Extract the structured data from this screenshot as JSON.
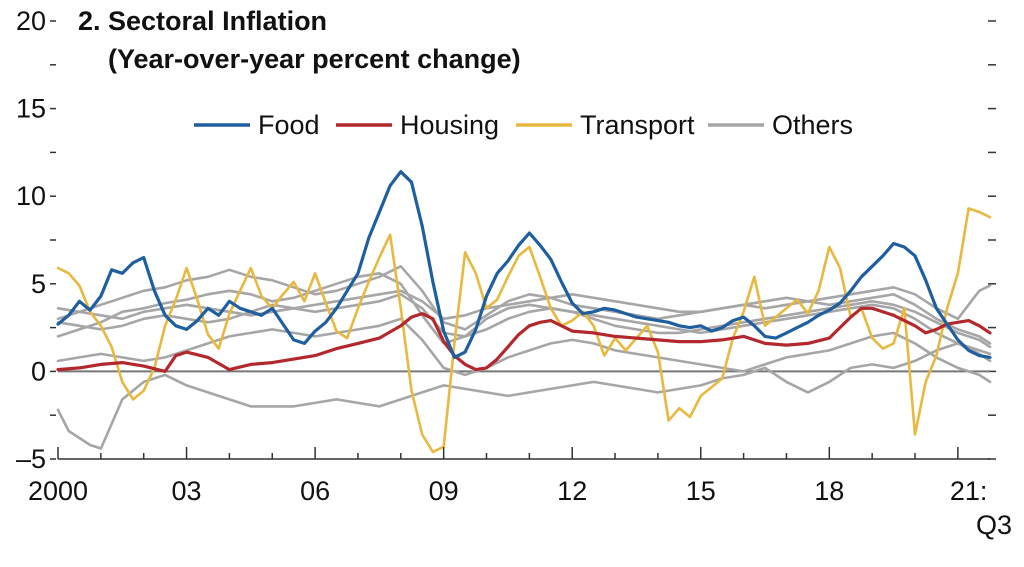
{
  "chart_data": {
    "type": "line",
    "title": "2. Sectoral Inflation",
    "subtitle": "(Year-over-year percent change)",
    "xlabel": "",
    "ylabel": "",
    "xlim": [
      2000,
      2021.75
    ],
    "ylim": [
      -5,
      20
    ],
    "y_ticks": [
      {
        "value": 20,
        "label": "20"
      },
      {
        "value": 15,
        "label": "15"
      },
      {
        "value": 10,
        "label": "10"
      },
      {
        "value": 5,
        "label": "5"
      },
      {
        "value": 0,
        "label": "0"
      },
      {
        "value": -5,
        "label": "–5"
      }
    ],
    "x_ticks": [
      {
        "value": 2000,
        "label": "2000"
      },
      {
        "value": 2003,
        "label": "03"
      },
      {
        "value": 2006,
        "label": "06"
      },
      {
        "value": 2009,
        "label": "09"
      },
      {
        "value": 2012,
        "label": "12"
      },
      {
        "value": 2015,
        "label": "15"
      },
      {
        "value": 2018,
        "label": "18"
      },
      {
        "value": 2021,
        "label": "21:"
      }
    ],
    "x_last_sublabel": "Q3",
    "legend_position": "top-center",
    "series": [
      {
        "name": "Food",
        "color": "#1f5f9f",
        "width": 3.2,
        "legend": true,
        "x": [
          2000,
          2000.25,
          2000.5,
          2000.75,
          2001,
          2001.25,
          2001.5,
          2001.75,
          2002,
          2002.25,
          2002.5,
          2002.75,
          2003,
          2003.25,
          2003.5,
          2003.75,
          2004,
          2004.25,
          2004.5,
          2004.75,
          2005,
          2005.25,
          2005.5,
          2005.75,
          2006,
          2006.25,
          2006.5,
          2006.75,
          2007,
          2007.25,
          2007.5,
          2007.75,
          2008,
          2008.25,
          2008.5,
          2008.75,
          2009,
          2009.25,
          2009.5,
          2009.75,
          2010,
          2010.25,
          2010.5,
          2010.75,
          2011,
          2011.25,
          2011.5,
          2011.75,
          2012,
          2012.25,
          2012.5,
          2012.75,
          2013,
          2013.25,
          2013.5,
          2013.75,
          2014,
          2014.25,
          2014.5,
          2014.75,
          2015,
          2015.25,
          2015.5,
          2015.75,
          2016,
          2016.25,
          2016.5,
          2016.75,
          2017,
          2017.25,
          2017.5,
          2017.75,
          2018,
          2018.25,
          2018.5,
          2018.75,
          2019,
          2019.25,
          2019.5,
          2019.75,
          2020,
          2020.25,
          2020.5,
          2020.75,
          2021,
          2021.25,
          2021.5,
          2021.75
        ],
        "values": [
          2.7,
          3.2,
          4.0,
          3.5,
          4.3,
          5.8,
          5.6,
          6.2,
          6.5,
          4.6,
          3.2,
          2.6,
          2.4,
          2.9,
          3.6,
          3.2,
          4.0,
          3.6,
          3.4,
          3.2,
          3.6,
          2.7,
          1.8,
          1.6,
          2.3,
          2.8,
          3.6,
          4.6,
          5.6,
          7.6,
          9.1,
          10.6,
          11.4,
          10.8,
          8.3,
          5.1,
          2.3,
          0.8,
          1.1,
          2.4,
          4.3,
          5.6,
          6.3,
          7.2,
          7.9,
          7.2,
          6.4,
          5.1,
          3.9,
          3.3,
          3.4,
          3.6,
          3.5,
          3.3,
          3.1,
          3.0,
          2.9,
          2.8,
          2.6,
          2.5,
          2.6,
          2.3,
          2.5,
          2.9,
          3.1,
          2.6,
          2.0,
          1.9,
          2.2,
          2.5,
          2.8,
          3.2,
          3.5,
          3.9,
          4.6,
          5.4,
          6.0,
          6.6,
          7.3,
          7.1,
          6.6,
          5.2,
          3.6,
          2.7,
          1.8,
          1.2,
          0.9,
          0.8
        ]
      },
      {
        "name": "Housing",
        "color": "#b3282d",
        "width": 3.2,
        "legend": true,
        "x": [
          2000,
          2000.5,
          2001,
          2001.5,
          2002,
          2002.5,
          2002.75,
          2003,
          2003.5,
          2004,
          2004.5,
          2005,
          2005.5,
          2006,
          2006.5,
          2007,
          2007.5,
          2008,
          2008.25,
          2008.5,
          2008.75,
          2009,
          2009.25,
          2009.5,
          2009.75,
          2010,
          2010.25,
          2010.5,
          2010.75,
          2011,
          2011.25,
          2011.5,
          2011.75,
          2012,
          2012.5,
          2013,
          2013.5,
          2014,
          2014.5,
          2015,
          2015.5,
          2016,
          2016.5,
          2017,
          2017.5,
          2018,
          2018.25,
          2018.5,
          2018.75,
          2019,
          2019.5,
          2020,
          2020.25,
          2020.5,
          2020.75,
          2021,
          2021.25,
          2021.5,
          2021.75
        ],
        "values": [
          0.1,
          0.2,
          0.4,
          0.5,
          0.3,
          0.0,
          0.9,
          1.1,
          0.8,
          0.1,
          0.4,
          0.5,
          0.7,
          0.9,
          1.3,
          1.6,
          1.9,
          2.6,
          3.1,
          3.3,
          3.0,
          1.7,
          0.9,
          0.4,
          0.1,
          0.2,
          0.7,
          1.4,
          2.1,
          2.6,
          2.8,
          2.9,
          2.6,
          2.3,
          2.2,
          2.0,
          1.9,
          1.8,
          1.7,
          1.7,
          1.8,
          2.0,
          1.6,
          1.5,
          1.6,
          1.9,
          2.5,
          3.1,
          3.6,
          3.6,
          3.2,
          2.6,
          2.2,
          2.4,
          2.7,
          2.8,
          2.9,
          2.6,
          2.2
        ]
      },
      {
        "name": "Transport",
        "color": "#e8b83f",
        "width": 2.6,
        "legend": true,
        "x": [
          2000,
          2000.25,
          2000.5,
          2000.75,
          2001,
          2001.25,
          2001.5,
          2001.75,
          2002,
          2002.25,
          2002.5,
          2002.75,
          2003,
          2003.25,
          2003.5,
          2003.75,
          2004,
          2004.25,
          2004.5,
          2004.75,
          2005,
          2005.25,
          2005.5,
          2005.75,
          2006,
          2006.25,
          2006.5,
          2006.75,
          2007,
          2007.25,
          2007.5,
          2007.75,
          2008,
          2008.25,
          2008.5,
          2008.75,
          2009,
          2009.25,
          2009.5,
          2009.75,
          2010,
          2010.25,
          2010.5,
          2010.75,
          2011,
          2011.25,
          2011.5,
          2011.75,
          2012,
          2012.25,
          2012.5,
          2012.75,
          2013,
          2013.25,
          2013.5,
          2013.75,
          2014,
          2014.25,
          2014.5,
          2014.75,
          2015,
          2015.25,
          2015.5,
          2015.75,
          2016,
          2016.25,
          2016.5,
          2016.75,
          2017,
          2017.25,
          2017.5,
          2017.75,
          2018,
          2018.25,
          2018.5,
          2018.75,
          2019,
          2019.25,
          2019.5,
          2019.75,
          2020,
          2020.25,
          2020.5,
          2020.75,
          2021,
          2021.25,
          2021.5,
          2021.75
        ],
        "values": [
          5.9,
          5.6,
          4.9,
          3.4,
          2.6,
          1.4,
          -0.6,
          -1.6,
          -1.1,
          0.2,
          2.6,
          4.1,
          5.9,
          4.1,
          2.1,
          1.3,
          3.3,
          4.6,
          5.9,
          4.3,
          3.6,
          4.4,
          5.1,
          4.0,
          5.6,
          3.9,
          2.3,
          1.9,
          3.6,
          5.1,
          6.5,
          7.8,
          3.6,
          -1.1,
          -3.6,
          -4.6,
          -4.3,
          1.6,
          6.8,
          5.6,
          3.6,
          4.1,
          5.4,
          6.6,
          7.1,
          5.4,
          3.6,
          2.6,
          2.9,
          3.4,
          2.6,
          0.9,
          1.9,
          1.2,
          1.9,
          2.6,
          1.1,
          -2.8,
          -2.1,
          -2.6,
          -1.4,
          -0.9,
          -0.4,
          1.9,
          3.4,
          5.4,
          2.6,
          3.1,
          3.6,
          4.1,
          3.3,
          4.6,
          7.1,
          5.9,
          3.1,
          3.6,
          1.9,
          1.3,
          1.6,
          3.6,
          -3.6,
          -0.6,
          0.9,
          3.6,
          5.6,
          9.3,
          9.1,
          8.8
        ]
      },
      {
        "name": "Others",
        "color": "#a6a6a6",
        "width": 2.6,
        "legend": true,
        "x": [
          2000,
          2000.5,
          2001,
          2001.5,
          2002,
          2002.5,
          2003,
          2003.5,
          2004,
          2004.5,
          2005,
          2005.5,
          2006,
          2006.5,
          2007,
          2007.5,
          2008,
          2008.5,
          2009,
          2009.5,
          2010,
          2010.5,
          2011,
          2011.5,
          2012,
          2012.5,
          2013,
          2013.5,
          2014,
          2014.5,
          2015,
          2015.5,
          2016,
          2016.5,
          2017,
          2017.5,
          2018,
          2018.5,
          2019,
          2019.5,
          2020,
          2020.5,
          2021,
          2021.5,
          2021.75
        ],
        "values": [
          3.0,
          3.4,
          3.8,
          4.2,
          4.6,
          4.8,
          5.2,
          5.4,
          5.8,
          5.4,
          5.2,
          4.8,
          4.4,
          4.6,
          5.0,
          5.4,
          6.0,
          4.6,
          2.8,
          2.4,
          3.2,
          4.0,
          4.4,
          4.2,
          3.8,
          3.6,
          3.4,
          3.2,
          3.0,
          3.2,
          3.4,
          3.6,
          3.8,
          3.6,
          3.8,
          4.0,
          4.2,
          4.4,
          4.6,
          4.8,
          4.4,
          3.6,
          3.0,
          4.6,
          4.9
        ]
      },
      {
        "name": "Others",
        "color": "#a6a6a6",
        "width": 2.6,
        "legend": false,
        "x": [
          2000,
          2000.5,
          2001,
          2001.5,
          2002,
          2002.5,
          2003,
          2003.5,
          2004,
          2004.5,
          2005,
          2005.5,
          2006,
          2006.5,
          2007,
          2007.5,
          2008,
          2008.5,
          2009,
          2009.5,
          2010,
          2010.5,
          2011,
          2011.5,
          2012,
          2012.5,
          2013,
          2013.5,
          2014,
          2014.5,
          2015,
          2015.5,
          2016,
          2016.5,
          2017,
          2017.5,
          2018,
          2018.5,
          2019,
          2019.5,
          2020,
          2020.5,
          2021,
          2021.5,
          2021.75
        ],
        "values": [
          2.0,
          2.4,
          2.8,
          3.4,
          3.6,
          3.9,
          4.1,
          4.4,
          4.6,
          4.4,
          4.0,
          4.2,
          4.6,
          5.0,
          5.4,
          5.6,
          5.0,
          3.2,
          1.6,
          2.0,
          3.0,
          3.6,
          3.8,
          3.6,
          3.4,
          3.2,
          3.0,
          2.8,
          2.6,
          2.4,
          2.2,
          2.4,
          2.6,
          2.8,
          3.0,
          3.2,
          3.4,
          3.6,
          3.8,
          3.6,
          3.0,
          2.2,
          1.6,
          1.2,
          1.0
        ]
      },
      {
        "name": "Others",
        "color": "#a6a6a6",
        "width": 2.6,
        "legend": false,
        "x": [
          2000,
          2000.5,
          2001,
          2001.5,
          2002,
          2002.5,
          2003,
          2003.5,
          2004,
          2004.5,
          2005,
          2005.5,
          2006,
          2006.5,
          2007,
          2007.5,
          2008,
          2008.5,
          2009,
          2009.5,
          2010,
          2010.5,
          2011,
          2011.5,
          2012,
          2012.5,
          2013,
          2013.5,
          2014,
          2014.5,
          2015,
          2015.5,
          2016,
          2016.5,
          2017,
          2017.5,
          2018,
          2018.5,
          2019,
          2019.5,
          2020,
          2020.5,
          2021,
          2021.5,
          2021.75
        ],
        "values": [
          3.6,
          3.4,
          3.2,
          3.0,
          3.4,
          3.6,
          3.8,
          3.6,
          3.4,
          3.2,
          3.4,
          3.6,
          3.8,
          4.0,
          4.2,
          4.4,
          4.6,
          4.0,
          3.0,
          3.2,
          3.6,
          3.8,
          4.0,
          4.2,
          4.4,
          4.2,
          4.0,
          3.8,
          3.6,
          3.4,
          3.4,
          3.6,
          3.8,
          4.0,
          4.2,
          4.0,
          3.8,
          4.0,
          4.2,
          4.4,
          3.8,
          3.0,
          2.4,
          2.0,
          1.6
        ]
      },
      {
        "name": "Others",
        "color": "#a6a6a6",
        "width": 2.6,
        "legend": false,
        "x": [
          2000,
          2000.5,
          2001,
          2001.5,
          2002,
          2002.5,
          2003,
          2003.5,
          2004,
          2004.5,
          2005,
          2005.5,
          2006,
          2006.5,
          2007,
          2007.5,
          2008,
          2008.5,
          2009,
          2009.5,
          2010,
          2010.5,
          2011,
          2011.5,
          2012,
          2012.5,
          2013,
          2013.5,
          2014,
          2014.5,
          2015,
          2015.5,
          2016,
          2016.5,
          2017,
          2017.5,
          2018,
          2018.5,
          2019,
          2019.5,
          2020,
          2020.5,
          2021,
          2021.5,
          2021.75
        ],
        "values": [
          2.8,
          2.6,
          2.4,
          2.6,
          3.0,
          3.2,
          3.0,
          2.8,
          3.0,
          3.4,
          3.8,
          3.6,
          3.4,
          3.6,
          3.8,
          4.0,
          4.4,
          3.6,
          2.2,
          2.0,
          2.4,
          3.0,
          3.4,
          3.6,
          3.4,
          3.0,
          2.6,
          2.4,
          2.2,
          2.2,
          2.4,
          2.6,
          2.8,
          3.0,
          3.2,
          3.4,
          3.6,
          3.8,
          4.0,
          3.8,
          3.4,
          2.8,
          2.2,
          1.8,
          1.4
        ]
      },
      {
        "name": "Others",
        "color": "#a6a6a6",
        "width": 2.6,
        "legend": false,
        "x": [
          2000,
          2000.5,
          2001,
          2001.5,
          2002,
          2002.5,
          2003,
          2003.5,
          2004,
          2004.5,
          2005,
          2005.5,
          2006,
          2006.5,
          2007,
          2007.5,
          2008,
          2008.5,
          2009,
          2009.5,
          2010,
          2010.5,
          2011,
          2011.5,
          2012,
          2012.5,
          2013,
          2013.5,
          2014,
          2014.5,
          2015,
          2015.5,
          2016,
          2016.5,
          2017,
          2017.5,
          2018,
          2018.5,
          2019,
          2019.5,
          2020,
          2020.5,
          2021,
          2021.5,
          2021.75
        ],
        "values": [
          0.6,
          0.8,
          1.0,
          0.8,
          0.6,
          0.8,
          1.2,
          1.6,
          2.0,
          2.2,
          2.4,
          2.2,
          2.0,
          2.2,
          2.4,
          2.6,
          3.0,
          1.8,
          0.2,
          -0.2,
          0.2,
          0.8,
          1.2,
          1.6,
          1.8,
          1.6,
          1.2,
          1.0,
          0.8,
          0.6,
          0.4,
          0.2,
          0.0,
          0.4,
          0.8,
          1.0,
          1.2,
          1.6,
          2.0,
          2.2,
          1.6,
          0.8,
          0.2,
          -0.2,
          -0.6
        ]
      },
      {
        "name": "Others",
        "color": "#a6a6a6",
        "width": 2.6,
        "legend": false,
        "x": [
          2000,
          2000.25,
          2000.5,
          2000.75,
          2001,
          2001.25,
          2001.5,
          2002,
          2002.5,
          2003,
          2003.5,
          2004,
          2004.5,
          2005,
          2005.5,
          2006,
          2006.5,
          2007,
          2007.5,
          2008,
          2008.5,
          2009,
          2009.5,
          2010,
          2010.5,
          2011,
          2011.5,
          2012,
          2012.5,
          2013,
          2013.5,
          2014,
          2014.5,
          2015,
          2015.5,
          2016,
          2016.5,
          2017,
          2017.5,
          2018,
          2018.5,
          2019,
          2019.5,
          2020,
          2020.5,
          2021,
          2021.5,
          2021.75
        ],
        "values": [
          -2.2,
          -3.4,
          -3.8,
          -4.2,
          -4.4,
          -3.0,
          -1.6,
          -0.6,
          -0.2,
          -0.8,
          -1.2,
          -1.6,
          -2.0,
          -2.0,
          -2.0,
          -1.8,
          -1.6,
          -1.8,
          -2.0,
          -1.6,
          -1.2,
          -0.8,
          -1.0,
          -1.2,
          -1.4,
          -1.2,
          -1.0,
          -0.8,
          -0.6,
          -0.8,
          -1.0,
          -1.2,
          -1.0,
          -0.8,
          -0.4,
          -0.2,
          0.2,
          -0.6,
          -1.2,
          -0.6,
          0.2,
          0.4,
          0.2,
          0.6,
          1.2,
          1.6,
          1.0,
          0.6
        ]
      }
    ]
  }
}
